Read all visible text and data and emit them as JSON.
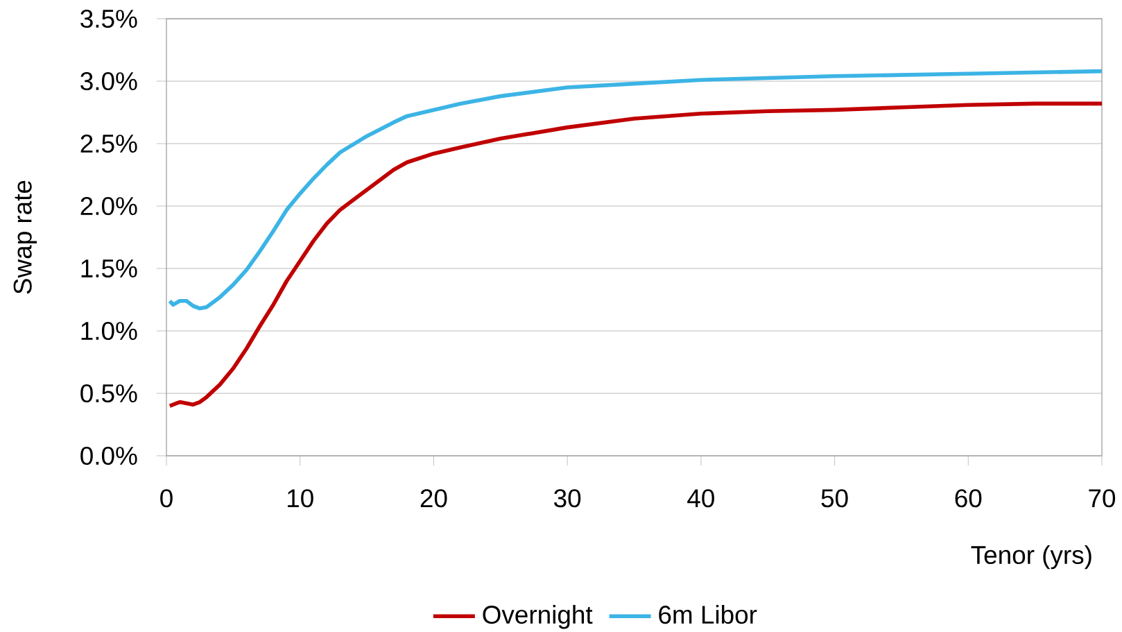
{
  "chart_data": {
    "type": "line",
    "xlabel": "Tenor (yrs)",
    "ylabel": "Swap rate",
    "x": [
      0.25,
      1,
      2,
      2.5,
      3,
      4,
      5,
      6,
      7,
      8,
      9,
      10,
      11,
      12,
      13,
      15,
      17,
      18,
      20,
      22,
      25,
      30,
      35,
      40,
      45,
      50,
      55,
      60,
      65,
      70
    ],
    "series": [
      {
        "name": "Overnight",
        "color": "#c00000",
        "values": [
          0.4,
          0.43,
          0.41,
          0.43,
          0.47,
          0.57,
          0.7,
          0.86,
          1.04,
          1.21,
          1.4,
          1.56,
          1.72,
          1.86,
          1.97,
          2.13,
          2.29,
          2.35,
          2.42,
          2.47,
          2.54,
          2.63,
          2.7,
          2.74,
          2.76,
          2.77,
          2.79,
          2.81,
          2.82,
          2.82
        ]
      },
      {
        "name": "6m Libor",
        "color": "#3cb4e5",
        "x": [
          0.25,
          0.5,
          1,
          1.5,
          2,
          2.5,
          3,
          4,
          5,
          6,
          7,
          8,
          9,
          10,
          11,
          12,
          13,
          15,
          17,
          18,
          20,
          22,
          25,
          30,
          35,
          40,
          50,
          60,
          70
        ],
        "values": [
          1.24,
          1.21,
          1.24,
          1.24,
          1.2,
          1.18,
          1.19,
          1.27,
          1.37,
          1.49,
          1.64,
          1.8,
          1.97,
          2.1,
          2.22,
          2.33,
          2.43,
          2.56,
          2.67,
          2.72,
          2.77,
          2.82,
          2.88,
          2.95,
          2.98,
          3.01,
          3.04,
          3.06,
          3.08
        ]
      }
    ],
    "xlim": [
      0,
      70
    ],
    "xticks": [
      0,
      10,
      20,
      30,
      40,
      50,
      60,
      70
    ],
    "ylim": [
      0,
      3.5
    ],
    "yticks": [
      {
        "value": 0,
        "label": "0.0%"
      },
      {
        "value": 0.5,
        "label": "0.5%"
      },
      {
        "value": 1,
        "label": "1.0%"
      },
      {
        "value": 1.5,
        "label": "1.5%"
      },
      {
        "value": 2,
        "label": "2.0%"
      },
      {
        "value": 2.5,
        "label": "2.5%"
      },
      {
        "value": 3,
        "label": "3.0%"
      },
      {
        "value": 3.5,
        "label": "3.5%"
      }
    ],
    "grid": "y",
    "legend": "bottom",
    "line_style": "solid",
    "marker": "none"
  }
}
